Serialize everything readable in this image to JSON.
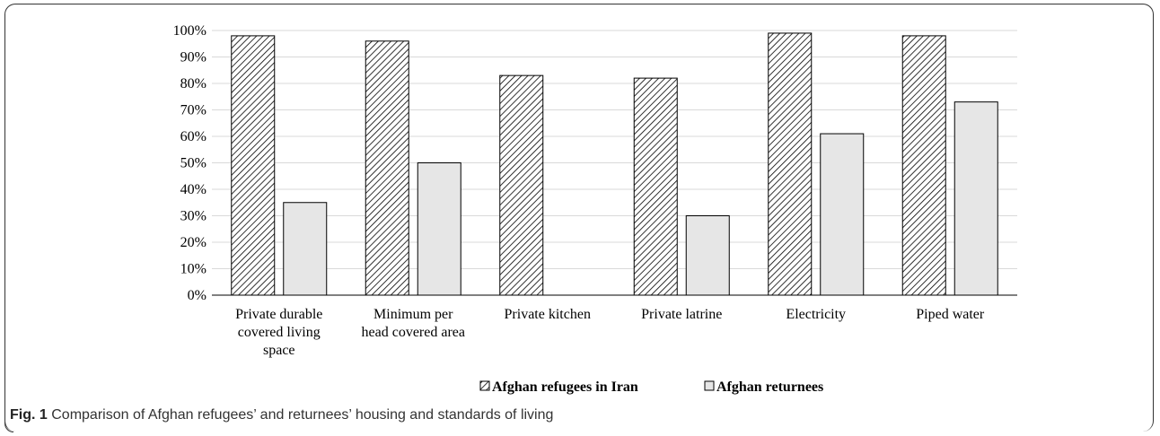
{
  "chart_data": {
    "type": "bar",
    "categories": [
      [
        "Private durable",
        "covered living",
        "space"
      ],
      [
        "Minimum per",
        "head covered area"
      ],
      [
        "Private kitchen"
      ],
      [
        "Private latrine"
      ],
      [
        "Electricity"
      ],
      [
        "Piped water"
      ]
    ],
    "series": [
      {
        "name": "Afghan refugees in Iran",
        "values": [
          98,
          96,
          83,
          82,
          99,
          98
        ],
        "fill": "hatched"
      },
      {
        "name": "Afghan returnees",
        "values": [
          35,
          50,
          null,
          30,
          61,
          73
        ],
        "fill": "#e6e6e6"
      }
    ],
    "yticks": [
      "0%",
      "10%",
      "20%",
      "30%",
      "40%",
      "50%",
      "60%",
      "70%",
      "80%",
      "90%",
      "100%"
    ],
    "ylim": [
      0,
      100
    ],
    "grid": true,
    "legend_position": "bottom",
    "colors": {
      "axis": "#000000",
      "grid": "#d9d9d9",
      "bar_stroke": "#000000",
      "returnees_fill": "#e6e6e6"
    }
  },
  "caption": {
    "label": "Fig. 1",
    "text": "Comparison of Afghan refugees’ and returnees’ housing and standards of living"
  }
}
